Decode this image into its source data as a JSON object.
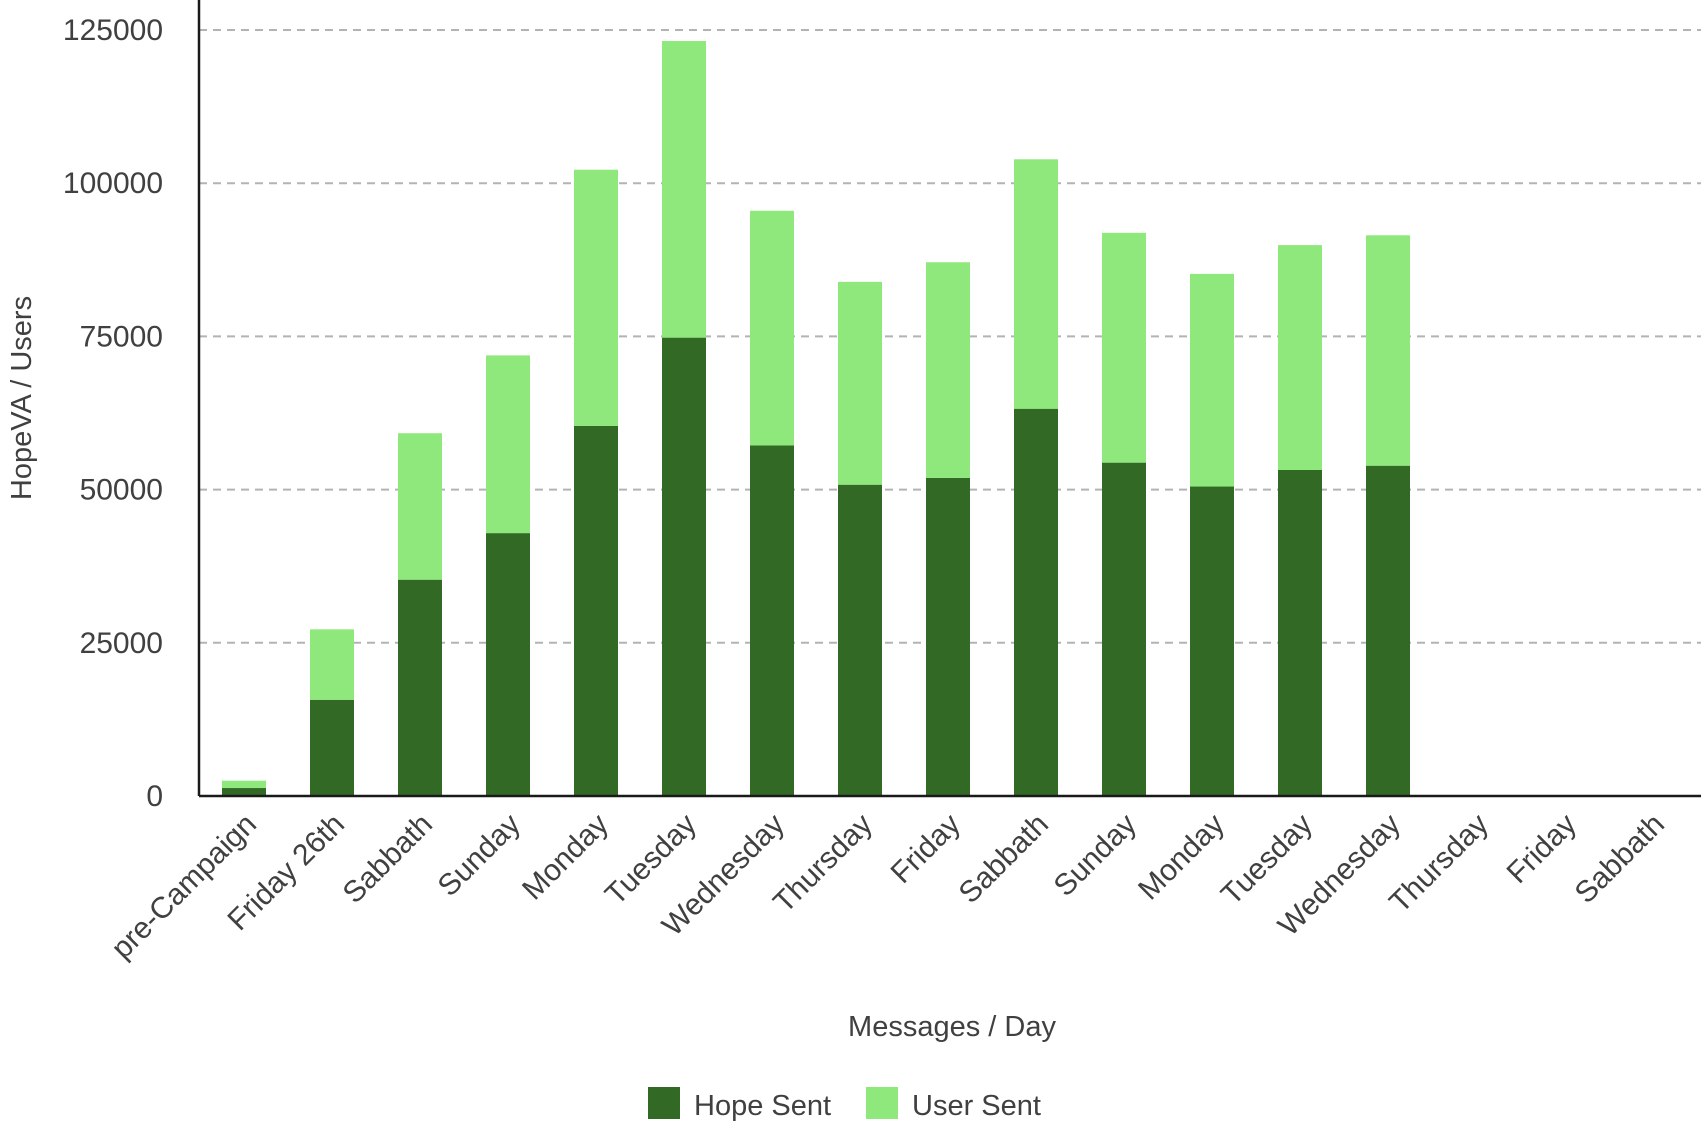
{
  "chart_data": {
    "type": "bar",
    "stacked": true,
    "title": "",
    "xlabel": "Messages / Day",
    "ylabel": "HopeVA / Users",
    "ylim": [
      0,
      125000
    ],
    "yticks": [
      0,
      25000,
      50000,
      75000,
      100000,
      125000
    ],
    "grid": true,
    "legend_position": "bottom",
    "categories": [
      "pre-Campaign",
      "Friday 26th",
      "Sabbath",
      "Sunday",
      "Monday",
      "Tuesday",
      "Wednesday",
      "Thursday",
      "Friday",
      "Sabbath",
      "Sunday",
      "Monday",
      "Tuesday",
      "Wednesday",
      "Thursday",
      "Friday",
      "Sabbath"
    ],
    "series": [
      {
        "name": "Hope Sent",
        "color": "#316925",
        "values": [
          1300,
          15700,
          35300,
          42900,
          60400,
          74800,
          57200,
          50800,
          51900,
          63200,
          54400,
          50500,
          53200,
          53900,
          null,
          null,
          null
        ]
      },
      {
        "name": "User Sent",
        "color": "#8ee87b",
        "values": [
          1200,
          11500,
          23900,
          29000,
          41800,
          48400,
          38300,
          33100,
          35200,
          40700,
          37500,
          34700,
          36700,
          37600,
          null,
          null,
          null
        ]
      }
    ]
  }
}
